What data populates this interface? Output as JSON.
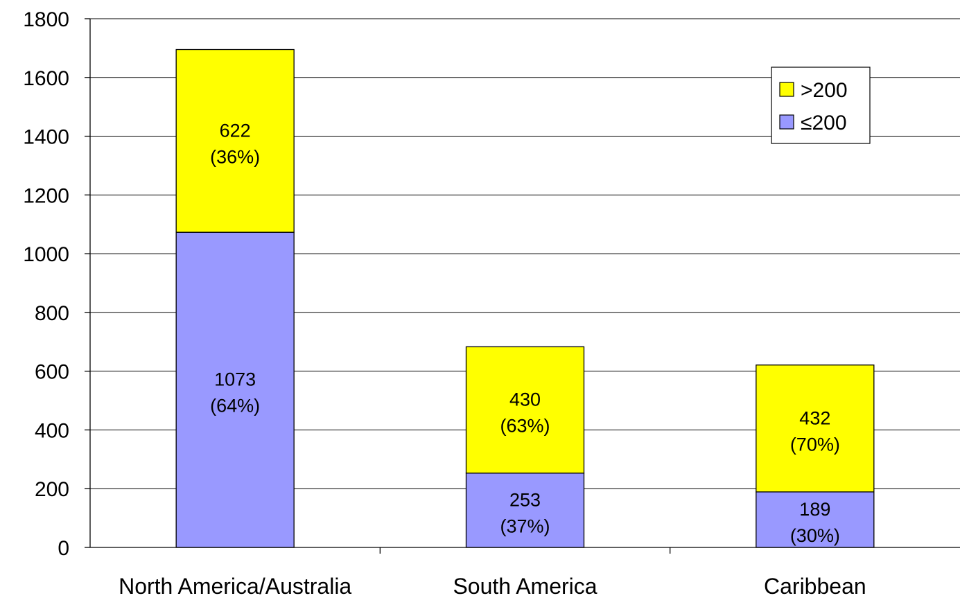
{
  "chart_data": {
    "type": "bar",
    "stacked": true,
    "categories": [
      "North America/Australia",
      "South America",
      "Caribbean"
    ],
    "series": [
      {
        "name": "≤200",
        "color": "#9999ff",
        "values": [
          1073,
          253,
          189
        ],
        "labels": [
          "1073",
          "253",
          "189"
        ],
        "pct_labels": [
          "(64%)",
          "(37%)",
          "(30%)"
        ]
      },
      {
        "name": ">200",
        "color": "#ffff00",
        "values": [
          622,
          430,
          432
        ],
        "labels": [
          "622",
          "430",
          "432"
        ],
        "pct_labels": [
          "(36%)",
          "(63%)",
          "(70%)"
        ]
      }
    ],
    "ylim": [
      0,
      1800
    ],
    "yticks": [
      "0",
      "200",
      "400",
      "600",
      "800",
      "1000",
      "1200",
      "1400",
      "1600",
      "1800"
    ],
    "grid": true,
    "legend_position": "top-right",
    "legend_order": [
      ">200",
      "≤200"
    ]
  }
}
